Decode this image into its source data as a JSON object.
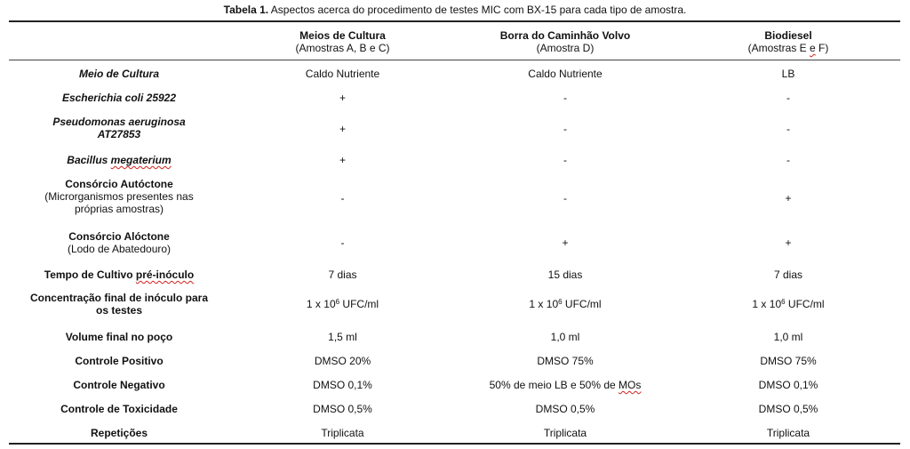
{
  "caption": {
    "label": "Tabela 1.",
    "text": " Aspectos acerca do procedimento de testes MIC com BX-15 para cada tipo de amostra."
  },
  "columns": [
    {
      "title": "Meios de Cultura",
      "subtitle": "(Amostras A, B e C)"
    },
    {
      "title": "Borra do Caminhão Volvo",
      "subtitle": "(Amostra D)"
    },
    {
      "title": "Biodiesel",
      "subtitle_pre": "(Amostras E ",
      "subtitle_spell": "e",
      "subtitle_post": " F)"
    }
  ],
  "rows": {
    "meio": {
      "label": "Meio de Cultura",
      "values": [
        "Caldo Nutriente",
        "Caldo Nutriente",
        "LB"
      ]
    },
    "ecoli": {
      "label": "Escherichia coli 25922",
      "values": [
        "+",
        "-",
        "-"
      ]
    },
    "pseudo": {
      "label_line1": "Pseudomonas aeruginosa",
      "label_line2": "AT27853",
      "values": [
        "+",
        "-",
        "-"
      ]
    },
    "bacillus": {
      "label_pre": "Bacillus ",
      "label_spell": "megaterium",
      "values": [
        "+",
        "-",
        "-"
      ]
    },
    "autoctone": {
      "title": "Consórcio Autóctone",
      "sub_line1": "(Microrganismos presentes nas",
      "sub_line2": "próprias amostras)",
      "values": [
        "-",
        "-",
        "+"
      ]
    },
    "aloctone": {
      "title": "Consórcio Alóctone",
      "sub": "(Lodo de Abatedouro)",
      "values": [
        "-",
        "+",
        "+"
      ]
    },
    "tempo": {
      "label_pre": "Tempo de Cultivo ",
      "label_spell": "pré-inóculo",
      "values": [
        "7 dias",
        "15 dias",
        "7 dias"
      ]
    },
    "concentracao": {
      "label_line1": "Concentração final de inóculo para",
      "label_line2": "os testes",
      "value_pre": "1 x 10",
      "value_exp": "6",
      "value_post": " UFC/ml"
    },
    "volume": {
      "label": "Volume final no poço",
      "values": [
        "1,5 ml",
        "1,0 ml",
        "1,0 ml"
      ]
    },
    "positivo": {
      "label": "Controle Positivo",
      "values": [
        "DMSO 20%",
        "DMSO 75%",
        "DMSO 75%"
      ]
    },
    "negativo": {
      "label": "Controle Negativo",
      "values": [
        "DMSO 0,1%",
        "",
        "DMSO 0,1%"
      ],
      "col2_pre": "50% de meio LB e 50% de ",
      "col2_spell": "MOs"
    },
    "toxicidade": {
      "label": "Controle de Toxicidade",
      "values": [
        "DMSO 0,5%",
        "DMSO 0,5%",
        "DMSO 0,5%"
      ]
    },
    "repeticoes": {
      "label": "Repetições",
      "values": [
        "Triplicata",
        "Triplicata",
        "Triplicata"
      ]
    }
  }
}
